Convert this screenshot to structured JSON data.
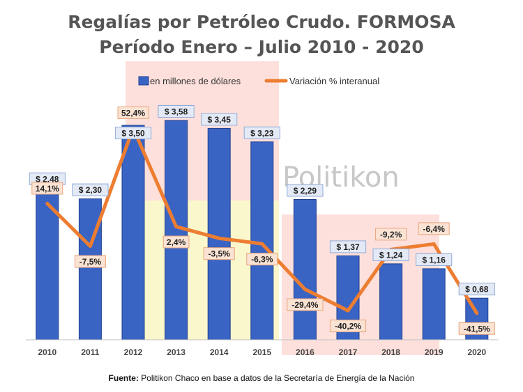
{
  "chart_data": {
    "type": "bar",
    "title_line1": "Regalías por Petróleo Crudo. FORMOSA",
    "title_line2": "Período Enero – Julio 2010 - 2020",
    "categories": [
      "2010",
      "2011",
      "2012",
      "2013",
      "2014",
      "2015",
      "2016",
      "2017",
      "2018",
      "2019",
      "2020"
    ],
    "series": [
      {
        "name": "en millones de dólares",
        "type": "bar",
        "values": [
          2.48,
          2.3,
          3.5,
          3.58,
          3.45,
          3.23,
          2.29,
          1.37,
          1.24,
          1.16,
          0.68
        ],
        "labels": [
          "$ 2,48",
          "$ 2,30",
          "$ 3,50",
          "$ 3,58",
          "$ 3,45",
          "$ 3,23",
          "$ 2,29",
          "$ 1,37",
          "$ 1,24",
          "$ 1,16",
          "$ 0,68"
        ],
        "color": "#3a64c4"
      },
      {
        "name": "Variación % interanual",
        "type": "line",
        "values": [
          14.1,
          -7.5,
          52.4,
          2.4,
          -3.5,
          -6.3,
          -29.4,
          -40.2,
          -9.2,
          -6.4,
          -41.5
        ],
        "labels": [
          "14,1%",
          "-7,5%",
          "52,4%",
          "2,4%",
          "-3,5%",
          "-6,3%",
          "-29,4%",
          "-40,2%",
          "-9,2%",
          "-6,4%",
          "-41,5%"
        ],
        "color": "#ed7d31"
      }
    ],
    "ylim": [
      0,
      4
    ],
    "y2lim": [
      -55,
      75
    ],
    "legend_position": "top",
    "grid": false
  },
  "watermark": "Politikon",
  "footer": {
    "label": "Fuente:",
    "text": " Politikon Chaco en base a datos de la Secretaría de Energía de la Nación"
  }
}
